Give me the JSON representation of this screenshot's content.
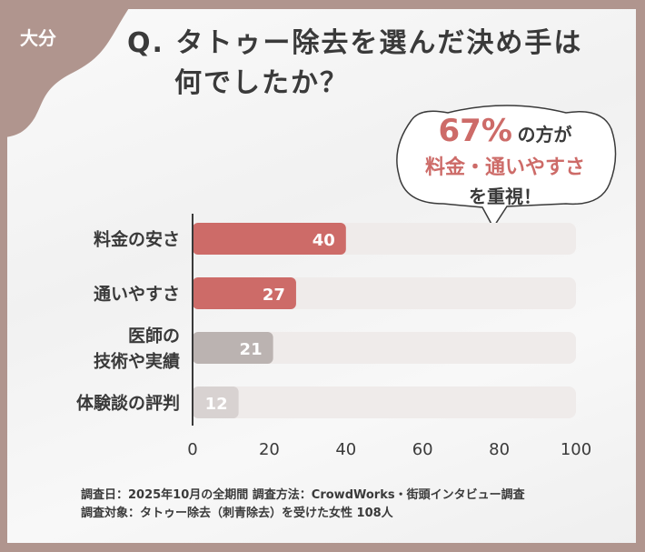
{
  "badge": "大分",
  "title": {
    "line1": "Q. タトゥー除去を選んだ決め手は",
    "line2": "何でしたか？"
  },
  "callout": {
    "percent": "67%",
    "text1": "の方が",
    "highlight": "料金・通いやすさ",
    "text2": "を重視！"
  },
  "chart_data": {
    "type": "bar",
    "orientation": "horizontal",
    "categories": [
      "料金の安さ",
      "通いやすさ",
      "医師の\n技術や実績",
      "体験談の評判"
    ],
    "values": [
      40,
      27,
      21,
      12
    ],
    "xlim": [
      0,
      100
    ],
    "xticks": [
      0,
      20,
      40,
      60,
      80,
      100
    ],
    "colors": [
      "#cd6b68",
      "#cd6b68",
      "#bbb3b1",
      "#d8d2d1"
    ],
    "track_color": "#efebea"
  },
  "footer": {
    "line1": "調査日：2025年10月の全期間 調査方法：CrowdWorks・街頭インタビュー調査",
    "line2": "調査対象：タトゥー除去（刺青除去）を受けた女性 108人"
  }
}
